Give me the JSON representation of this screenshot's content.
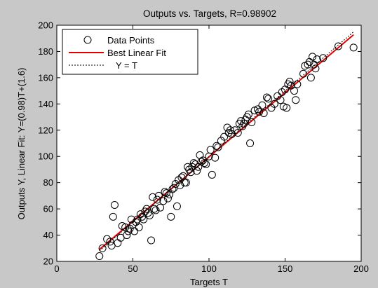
{
  "chart_data": {
    "type": "scatter",
    "title": "Outputs vs. Targets, R=0.98902",
    "xlabel": "Targets T",
    "ylabel": "Outputs Y,  Linear Fit: Y=(0.98)T+(1.6)",
    "xlim": [
      0,
      200
    ],
    "ylim": [
      20,
      200
    ],
    "xticks": [
      0,
      50,
      100,
      150,
      200
    ],
    "yticks": [
      20,
      40,
      60,
      80,
      100,
      120,
      140,
      160,
      180,
      200
    ],
    "grid": false,
    "legend_position": "top-left",
    "legend": [
      "Data Points",
      "Best Linear Fit",
      "Y = T"
    ],
    "colors": {
      "points": "#000000",
      "fit": "#e00000",
      "identity": "#000000",
      "background": "#c8c8c8",
      "plot_area": "#ffffff"
    },
    "fit": {
      "slope": 0.98,
      "intercept": 1.6,
      "x_range": [
        28,
        195
      ]
    },
    "identity": {
      "x_range": [
        28,
        195
      ]
    },
    "points": [
      [
        28,
        24
      ],
      [
        30,
        30
      ],
      [
        33,
        37
      ],
      [
        35,
        35
      ],
      [
        36,
        32
      ],
      [
        37,
        54
      ],
      [
        38,
        63
      ],
      [
        40,
        34
      ],
      [
        42,
        38
      ],
      [
        43,
        47
      ],
      [
        45,
        46
      ],
      [
        46,
        40
      ],
      [
        47,
        43
      ],
      [
        48,
        45
      ],
      [
        49,
        52
      ],
      [
        50,
        48
      ],
      [
        51,
        43
      ],
      [
        52,
        50
      ],
      [
        53,
        52
      ],
      [
        54,
        46
      ],
      [
        55,
        56
      ],
      [
        56,
        54
      ],
      [
        57,
        52
      ],
      [
        58,
        58
      ],
      [
        59,
        60
      ],
      [
        60,
        57
      ],
      [
        61,
        55
      ],
      [
        62,
        36
      ],
      [
        63,
        69
      ],
      [
        64,
        60
      ],
      [
        65,
        59
      ],
      [
        66,
        67
      ],
      [
        67,
        70
      ],
      [
        68,
        61
      ],
      [
        70,
        66
      ],
      [
        71,
        73
      ],
      [
        72,
        72
      ],
      [
        73,
        68
      ],
      [
        74,
        71
      ],
      [
        75,
        54
      ],
      [
        76,
        75
      ],
      [
        77,
        76
      ],
      [
        78,
        79
      ],
      [
        79,
        62
      ],
      [
        80,
        82
      ],
      [
        81,
        78
      ],
      [
        82,
        84
      ],
      [
        83,
        85
      ],
      [
        84,
        80
      ],
      [
        85,
        80
      ],
      [
        86,
        92
      ],
      [
        87,
        90
      ],
      [
        88,
        88
      ],
      [
        89,
        92
      ],
      [
        90,
        95
      ],
      [
        91,
        94
      ],
      [
        92,
        89
      ],
      [
        93,
        92
      ],
      [
        94,
        101
      ],
      [
        95,
        96
      ],
      [
        96,
        97
      ],
      [
        97,
        95
      ],
      [
        98,
        94
      ],
      [
        100,
        100
      ],
      [
        101,
        105
      ],
      [
        102,
        86
      ],
      [
        104,
        99
      ],
      [
        105,
        108
      ],
      [
        106,
        107
      ],
      [
        108,
        112
      ],
      [
        110,
        115
      ],
      [
        112,
        122
      ],
      [
        113,
        118
      ],
      [
        114,
        120
      ],
      [
        115,
        117
      ],
      [
        117,
        120
      ],
      [
        119,
        118
      ],
      [
        120,
        125
      ],
      [
        121,
        127
      ],
      [
        122,
        123
      ],
      [
        123,
        125
      ],
      [
        124,
        128
      ],
      [
        125,
        130
      ],
      [
        126,
        132
      ],
      [
        127,
        110
      ],
      [
        128,
        126
      ],
      [
        130,
        135
      ],
      [
        132,
        136
      ],
      [
        133,
        134
      ],
      [
        135,
        139
      ],
      [
        136,
        133
      ],
      [
        138,
        145
      ],
      [
        139,
        144
      ],
      [
        141,
        137
      ],
      [
        143,
        140
      ],
      [
        145,
        146
      ],
      [
        147,
        143
      ],
      [
        148,
        149
      ],
      [
        149,
        138
      ],
      [
        150,
        151
      ],
      [
        151,
        137
      ],
      [
        152,
        155
      ],
      [
        153,
        157
      ],
      [
        154,
        154
      ],
      [
        156,
        150
      ],
      [
        157,
        143
      ],
      [
        158,
        155
      ],
      [
        162,
        163
      ],
      [
        163,
        169
      ],
      [
        165,
        170
      ],
      [
        166,
        172
      ],
      [
        167,
        160
      ],
      [
        168,
        176
      ],
      [
        169,
        170
      ],
      [
        170,
        167
      ],
      [
        171,
        174
      ],
      [
        175,
        175
      ],
      [
        185,
        184
      ],
      [
        195,
        183
      ]
    ]
  }
}
